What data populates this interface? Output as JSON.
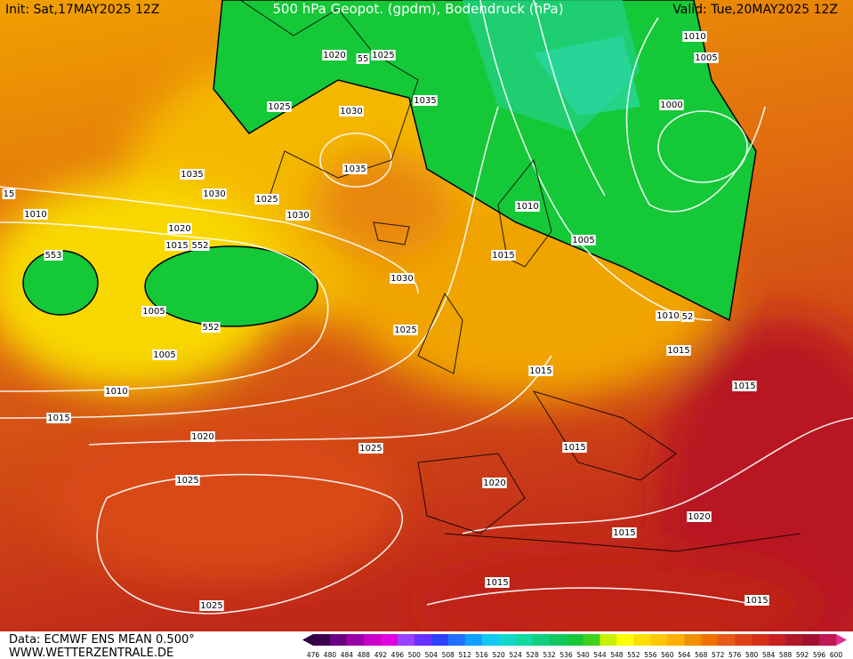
{
  "header": {
    "init": "Init: Sat,17MAY2025 12Z",
    "title": "500 hPa Geopot. (gpdm), Bodendruck (hPa)",
    "valid": "Valid: Tue,20MAY2025 12Z"
  },
  "isobar_labels": [
    "1010",
    "1005",
    "1020",
    "55",
    "1025",
    "1025",
    "1030",
    "1035",
    "1000",
    "1035",
    "1035",
    "1030",
    "15",
    "1025",
    "1030",
    "1010",
    "1010",
    "1020",
    "1015",
    "552",
    "1005",
    "553",
    "1015",
    "1030",
    "1005",
    "1010",
    "52",
    "552",
    "1025",
    "1015",
    "1005",
    "1015",
    "1010",
    "1015",
    "1015",
    "1020",
    "1015",
    "1025",
    "1025",
    "1020",
    "1020",
    "1015",
    "1015",
    "1015",
    "1025"
  ],
  "colorbar": {
    "labels": [
      476,
      480,
      484,
      488,
      492,
      496,
      500,
      504,
      508,
      512,
      516,
      520,
      524,
      528,
      532,
      536,
      540,
      544,
      548,
      552,
      556,
      560,
      564,
      568,
      572,
      576,
      580,
      584,
      588,
      592,
      596,
      600
    ]
  },
  "footer": {
    "source": "Data: ECMWF ENS MEAN 0.500°",
    "website": "WWW.WETTERZENTRALE.DE"
  }
}
